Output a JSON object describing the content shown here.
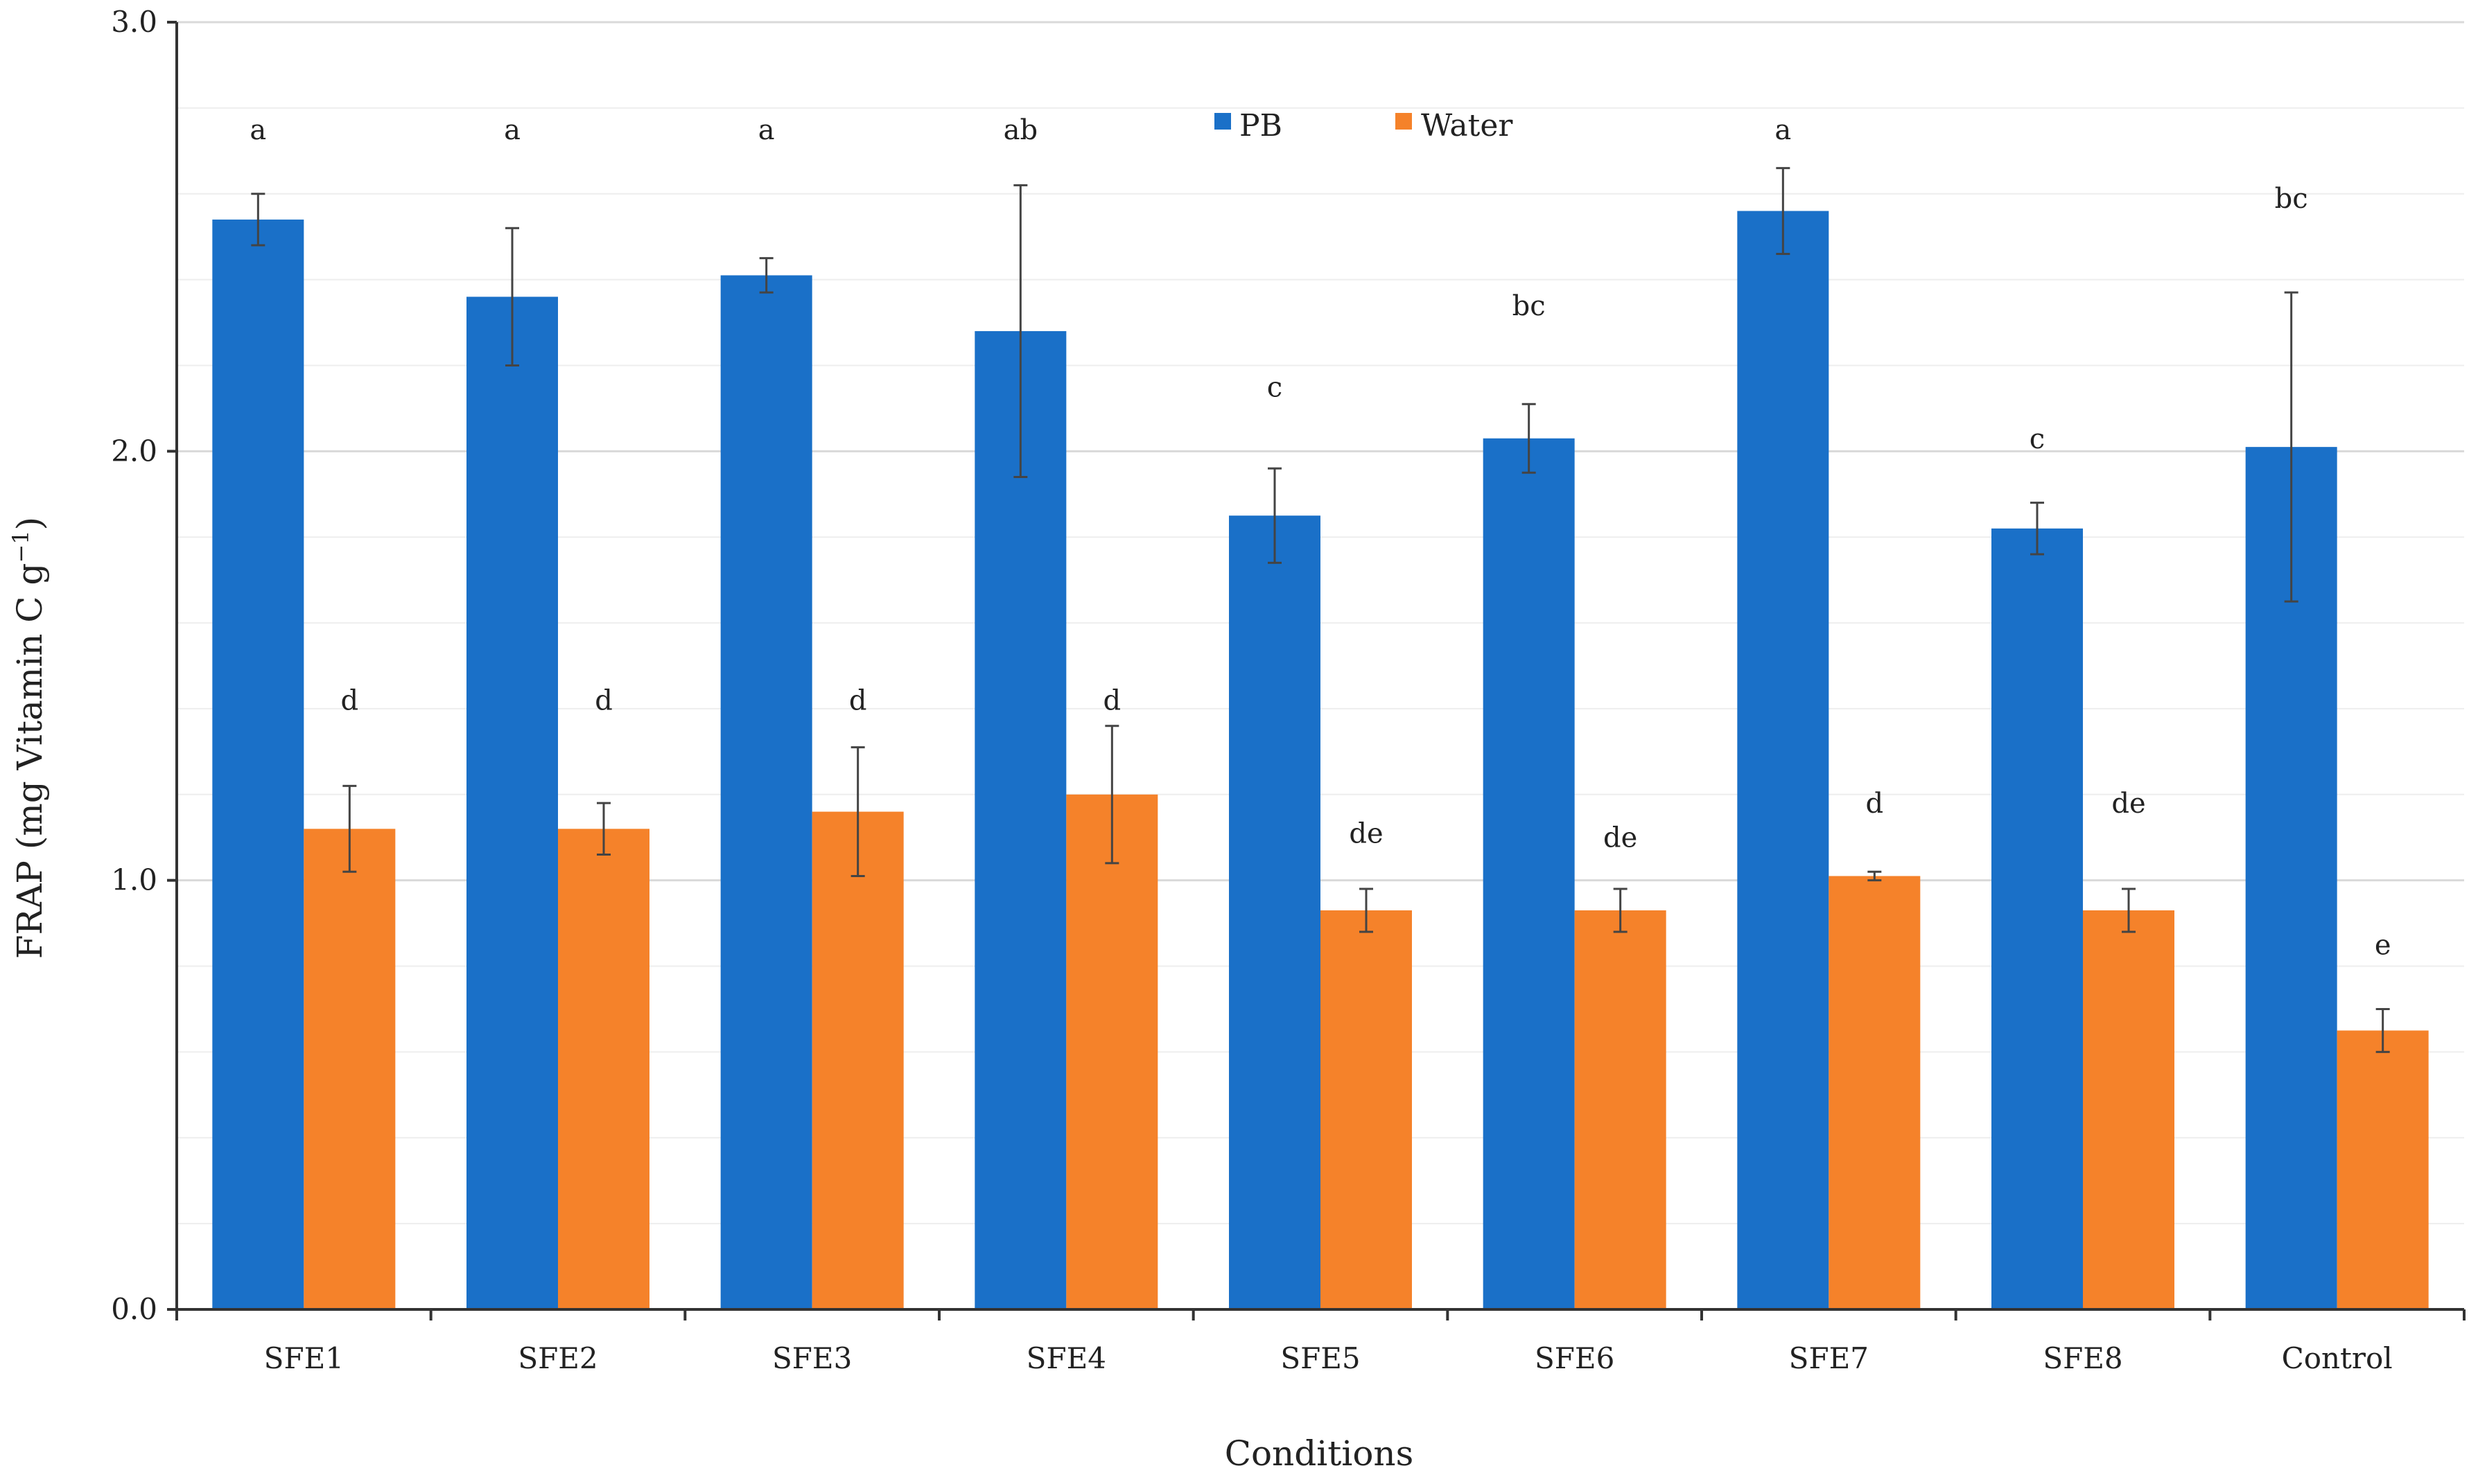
{
  "colors": {
    "PB": "#1a70c8",
    "Water": "#f5822a",
    "axis": "#333333",
    "grid": "#d9d9d9",
    "grid_minor": "#eeeeee"
  },
  "chart_data": {
    "type": "bar",
    "title": "",
    "xlabel": "Conditions",
    "ylabel": "FRAP (mg Vitamin C g",
    "ylabel_sup": "−1",
    "ylabel_end": ")",
    "ylim": [
      0,
      3
    ],
    "yticks": [
      "0.0",
      "1.0",
      "2.0",
      "3.0"
    ],
    "categories": [
      "SFE1",
      "SFE2",
      "SFE3",
      "SFE4",
      "SFE5",
      "SFE6",
      "SFE7",
      "SFE8",
      "Control"
    ],
    "legend": {
      "position": "top-center",
      "entries": [
        "PB",
        "Water"
      ]
    },
    "series": [
      {
        "name": "PB",
        "values": [
          2.54,
          2.36,
          2.41,
          2.28,
          1.85,
          2.03,
          2.56,
          1.82,
          2.01
        ],
        "errors": [
          0.06,
          0.16,
          0.04,
          0.34,
          0.11,
          0.08,
          0.1,
          0.06,
          0.36
        ],
        "labels": [
          "a",
          "a",
          "a",
          "ab",
          "c",
          "bc",
          "a",
          "c",
          "bc"
        ],
        "label_values": [
          2.75,
          2.75,
          2.75,
          2.75,
          2.15,
          2.34,
          2.75,
          2.03,
          2.59
        ]
      },
      {
        "name": "Water",
        "values": [
          1.12,
          1.12,
          1.16,
          1.2,
          0.93,
          0.93,
          1.01,
          0.93,
          0.65
        ],
        "errors": [
          0.1,
          0.06,
          0.15,
          0.16,
          0.05,
          0.05,
          0.01,
          0.05,
          0.05
        ],
        "labels": [
          "d",
          "d",
          "d",
          "d",
          "de",
          "de",
          "d",
          "de",
          "e"
        ],
        "label_values": [
          1.42,
          1.42,
          1.42,
          1.42,
          1.11,
          1.1,
          1.18,
          1.18,
          0.85
        ]
      }
    ]
  }
}
